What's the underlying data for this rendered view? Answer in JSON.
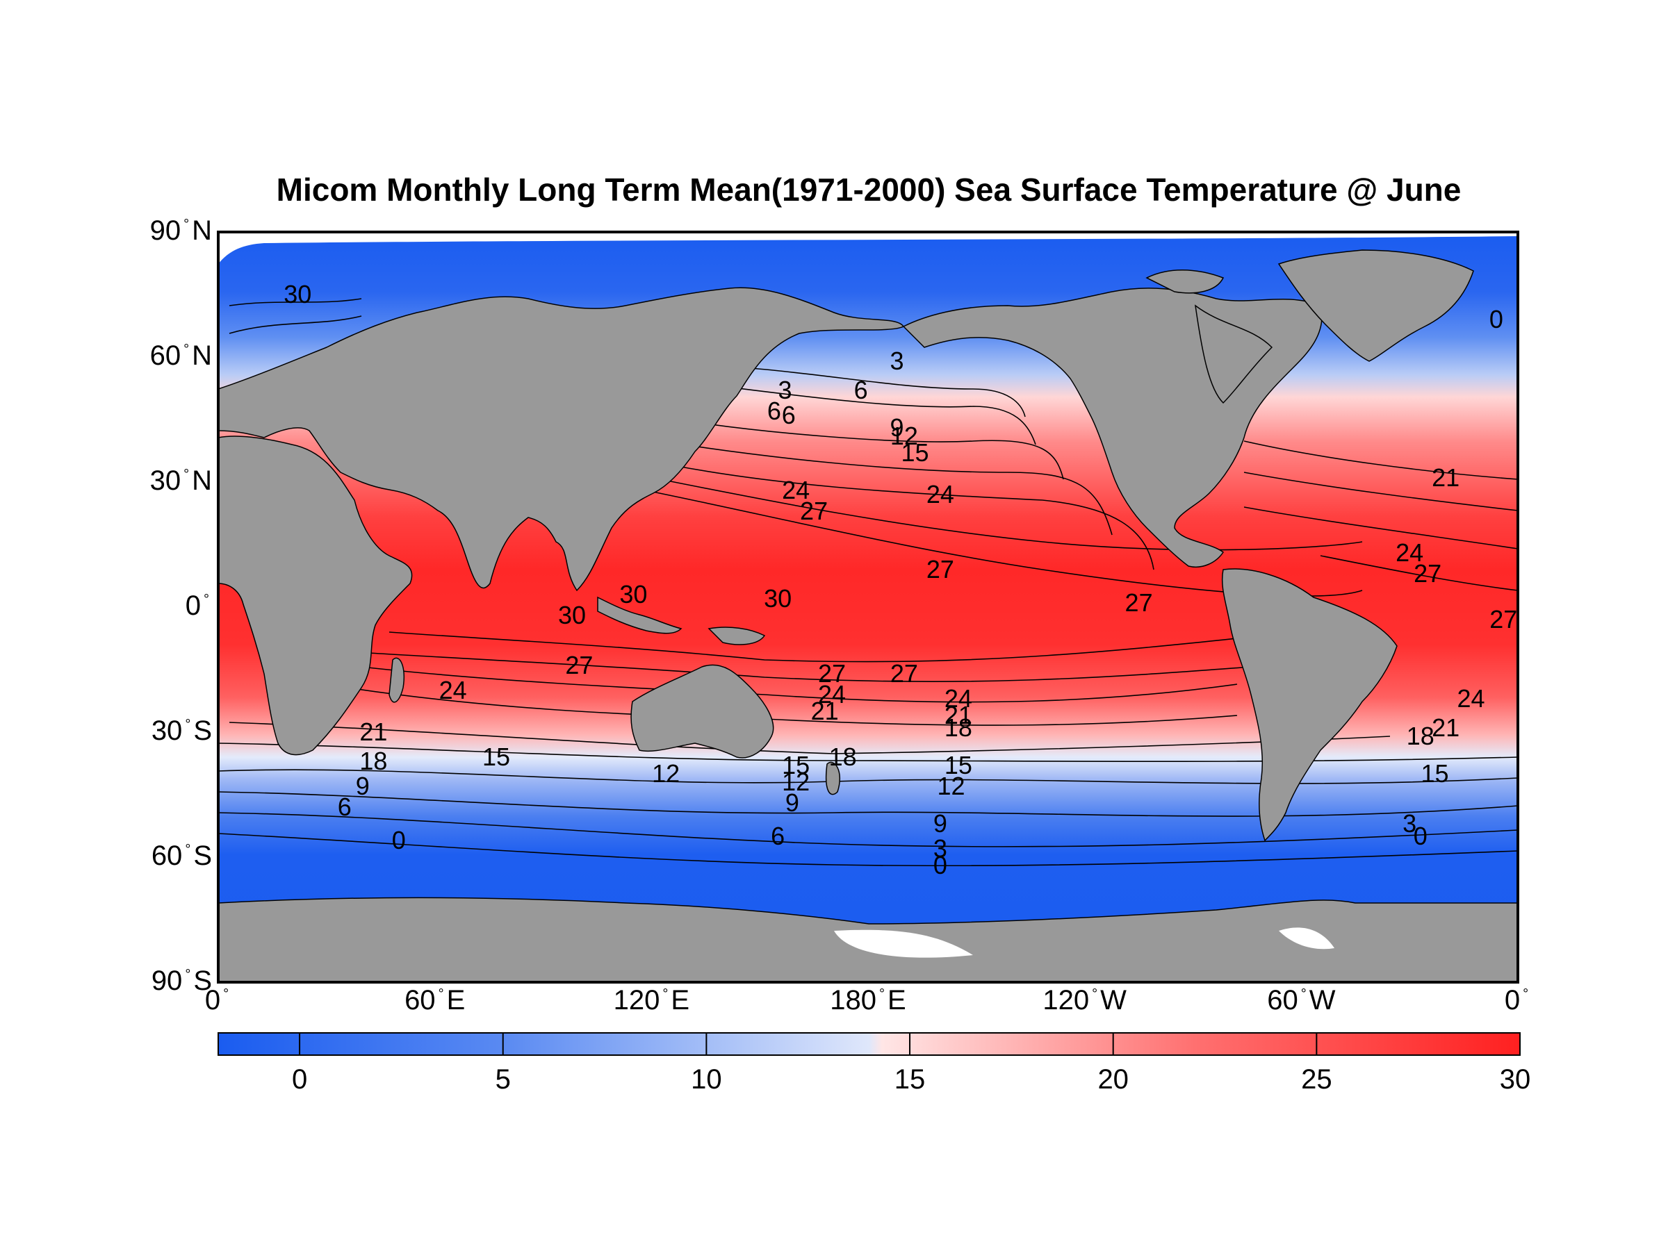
{
  "title": "Micom Monthly Long Term Mean(1971-2000) Sea Surface Temperature @ June",
  "latitude_ticks": [
    {
      "label": "90",
      "hemi": "N",
      "lat": 90
    },
    {
      "label": "60",
      "hemi": "N",
      "lat": 60
    },
    {
      "label": "30",
      "hemi": "N",
      "lat": 30
    },
    {
      "label": "0",
      "hemi": "",
      "lat": 0
    },
    {
      "label": "30",
      "hemi": "S",
      "lat": -30
    },
    {
      "label": "60",
      "hemi": "S",
      "lat": -60
    },
    {
      "label": "90",
      "hemi": "S",
      "lat": -90
    }
  ],
  "longitude_ticks": [
    {
      "label": "0",
      "hemi": "",
      "lon": 0
    },
    {
      "label": "60",
      "hemi": "E",
      "lon": 60
    },
    {
      "label": "120",
      "hemi": "E",
      "lon": 120
    },
    {
      "label": "180",
      "hemi": "E",
      "lon": 180
    },
    {
      "label": "120",
      "hemi": "W",
      "lon": 240
    },
    {
      "label": "60",
      "hemi": "W",
      "lon": 300
    },
    {
      "label": "0",
      "hemi": "",
      "lon": 360
    }
  ],
  "colorbar": {
    "min": -2,
    "max": 30,
    "tick_values": [
      0,
      5,
      10,
      15,
      20,
      25,
      30
    ],
    "tick_labels": [
      "0",
      "5",
      "10",
      "15",
      "20",
      "25",
      "30"
    ],
    "colors": {
      "cold": "#1a5cf0",
      "mid": "#ffffff",
      "warm": "#ff2020"
    }
  },
  "map_colors": {
    "land": "#999999",
    "ice": "#ffffff",
    "frame": "#000000"
  },
  "contour_labels": [
    {
      "text": "30",
      "lon": 115,
      "lat": 3
    },
    {
      "text": "30",
      "lon": 98,
      "lat": -2
    },
    {
      "text": "30",
      "lon": 155,
      "lat": 2
    },
    {
      "text": "27",
      "lon": 100,
      "lat": -14
    },
    {
      "text": "27",
      "lon": 165,
      "lat": 23
    },
    {
      "text": "27",
      "lon": 200,
      "lat": 9
    },
    {
      "text": "27",
      "lon": 255,
      "lat": 1
    },
    {
      "text": "27",
      "lon": 335,
      "lat": 8
    },
    {
      "text": "27",
      "lon": 356,
      "lat": -3
    },
    {
      "text": "27",
      "lon": 170,
      "lat": -16
    },
    {
      "text": "27",
      "lon": 190,
      "lat": -16
    },
    {
      "text": "24",
      "lon": 65,
      "lat": -20
    },
    {
      "text": "24",
      "lon": 160,
      "lat": 28
    },
    {
      "text": "24",
      "lon": 200,
      "lat": 27
    },
    {
      "text": "24",
      "lon": 330,
      "lat": 13
    },
    {
      "text": "24",
      "lon": 347,
      "lat": -22
    },
    {
      "text": "24",
      "lon": 170,
      "lat": -21
    },
    {
      "text": "24",
      "lon": 205,
      "lat": -22
    },
    {
      "text": "21",
      "lon": 43,
      "lat": -30
    },
    {
      "text": "21",
      "lon": 168,
      "lat": -25
    },
    {
      "text": "21",
      "lon": 205,
      "lat": -26
    },
    {
      "text": "21",
      "lon": 340,
      "lat": 31
    },
    {
      "text": "21",
      "lon": 340,
      "lat": -29
    },
    {
      "text": "18",
      "lon": 43,
      "lat": -37
    },
    {
      "text": "18",
      "lon": 173,
      "lat": -36
    },
    {
      "text": "18",
      "lon": 205,
      "lat": -29
    },
    {
      "text": "18",
      "lon": 333,
      "lat": -31
    },
    {
      "text": "15",
      "lon": 77,
      "lat": -36
    },
    {
      "text": "15",
      "lon": 160,
      "lat": -38
    },
    {
      "text": "15",
      "lon": 205,
      "lat": -38
    },
    {
      "text": "15",
      "lon": 193,
      "lat": 37
    },
    {
      "text": "15",
      "lon": 337,
      "lat": -40
    },
    {
      "text": "12",
      "lon": 124,
      "lat": -40
    },
    {
      "text": "12",
      "lon": 203,
      "lat": -43
    },
    {
      "text": "12",
      "lon": 160,
      "lat": -42
    },
    {
      "text": "12",
      "lon": 190,
      "lat": 41
    },
    {
      "text": "9",
      "lon": 40,
      "lat": -43
    },
    {
      "text": "9",
      "lon": 159,
      "lat": -47
    },
    {
      "text": "9",
      "lon": 188,
      "lat": 43
    },
    {
      "text": "9",
      "lon": 200,
      "lat": -52
    },
    {
      "text": "6",
      "lon": 35,
      "lat": -48
    },
    {
      "text": "6",
      "lon": 154,
      "lat": 47
    },
    {
      "text": "6",
      "lon": 158,
      "lat": 46
    },
    {
      "text": "6",
      "lon": 155,
      "lat": -55
    },
    {
      "text": "6",
      "lon": 178,
      "lat": 52
    },
    {
      "text": "3",
      "lon": 188,
      "lat": 59
    },
    {
      "text": "3",
      "lon": 157,
      "lat": 52
    },
    {
      "text": "3",
      "lon": 200,
      "lat": -58
    },
    {
      "text": "3",
      "lon": 330,
      "lat": -52
    },
    {
      "text": "0",
      "lon": 50,
      "lat": -56
    },
    {
      "text": "0",
      "lon": 200,
      "lat": -62
    },
    {
      "text": "0",
      "lon": 333,
      "lat": -55
    },
    {
      "text": "30",
      "lon": 22,
      "lat": 75
    },
    {
      "text": "0",
      "lon": 354,
      "lat": 69
    }
  ]
}
